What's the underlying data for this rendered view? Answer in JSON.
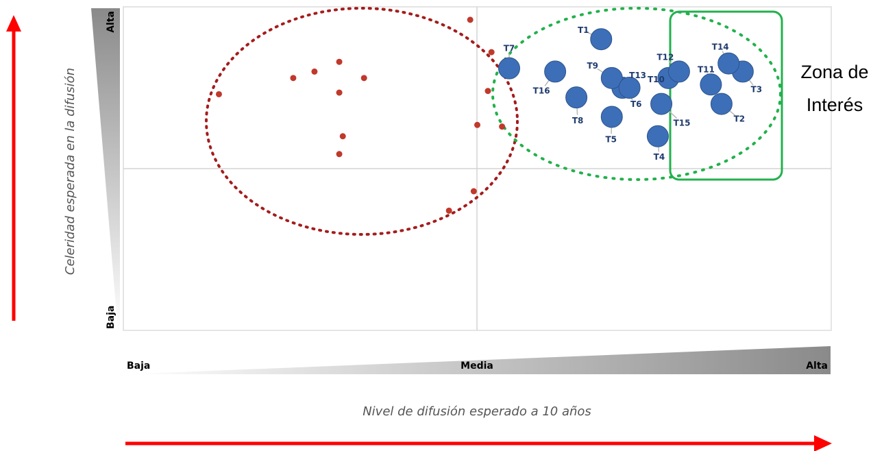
{
  "chart_data": {
    "type": "scatter",
    "xlabel": "Nivel de difusión esperado a 10 años",
    "ylabel": "Celeridad esperada en la difusión",
    "x_ticks": [
      "Baja",
      "Media",
      "Alta"
    ],
    "y_ticks": [
      "Baja",
      "Alta"
    ],
    "xlim": [
      0,
      10
    ],
    "ylim": [
      0,
      10
    ],
    "grid": true,
    "colors": {
      "highlighted": "#3d6fb8",
      "other": "#c0392b",
      "zone_box": "#22b14c",
      "arrow": "#ff0000"
    },
    "series": [
      {
        "points": [
          {
            "label": "T1",
            "x": 6.75,
            "y": 9.0
          },
          {
            "label": "T2",
            "x": 8.45,
            "y": 7.0
          },
          {
            "label": "T3",
            "x": 8.75,
            "y": 8.0
          },
          {
            "label": "T4",
            "x": 7.55,
            "y": 6.0
          },
          {
            "label": "T5",
            "x": 6.9,
            "y": 6.6
          },
          {
            "label": "T6",
            "x": 7.05,
            "y": 7.5
          },
          {
            "label": "T7",
            "x": 5.45,
            "y": 8.1
          },
          {
            "label": "T8",
            "x": 6.4,
            "y": 7.2
          },
          {
            "label": "T9",
            "x": 6.9,
            "y": 7.8
          },
          {
            "label": "T10",
            "x": 7.7,
            "y": 7.8
          },
          {
            "label": "T11",
            "x": 8.3,
            "y": 7.6
          },
          {
            "label": "T12",
            "x": 7.85,
            "y": 8.0
          },
          {
            "label": "T13",
            "x": 7.15,
            "y": 7.5
          },
          {
            "label": "T14",
            "x": 8.55,
            "y": 8.25
          },
          {
            "label": "T15",
            "x": 7.6,
            "y": 7.0
          },
          {
            "label": "T16",
            "x": 6.1,
            "y": 8.0
          }
        ]
      },
      {
        "points": [
          {
            "x": 1.35,
            "y": 7.3
          },
          {
            "x": 2.4,
            "y": 7.8
          },
          {
            "x": 2.7,
            "y": 8.0
          },
          {
            "x": 3.05,
            "y": 8.3
          },
          {
            "x": 3.05,
            "y": 7.35
          },
          {
            "x": 3.4,
            "y": 7.8
          },
          {
            "x": 3.1,
            "y": 6.0
          },
          {
            "x": 3.05,
            "y": 5.45
          },
          {
            "x": 4.9,
            "y": 9.6
          },
          {
            "x": 5.2,
            "y": 8.6
          },
          {
            "x": 5.15,
            "y": 7.4
          },
          {
            "x": 5.0,
            "y": 6.35
          },
          {
            "x": 5.35,
            "y": 6.3
          },
          {
            "x": 4.95,
            "y": 4.3
          },
          {
            "x": 4.6,
            "y": 3.7
          }
        ]
      }
    ],
    "annotation": "Zona de Interés"
  }
}
